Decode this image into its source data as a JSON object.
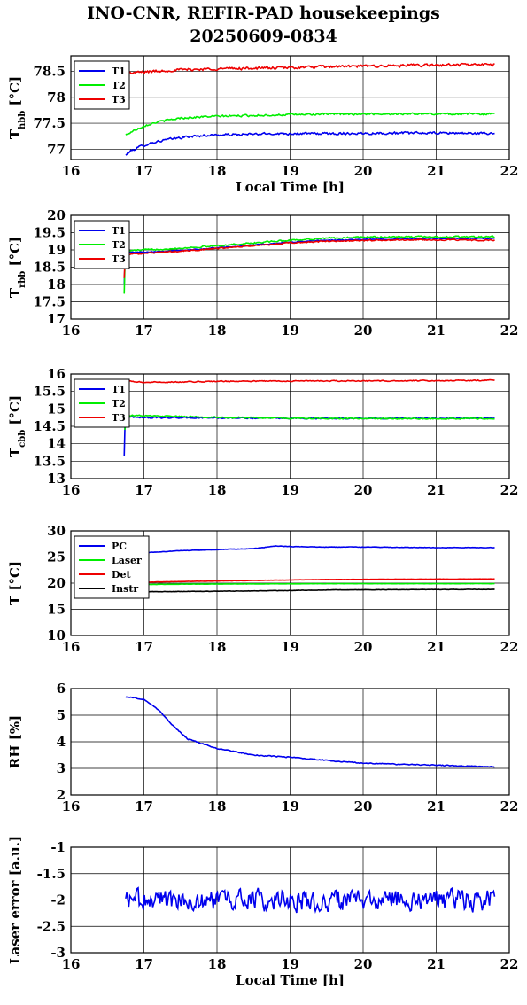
{
  "title": "INO-CNR, REFIR-PAD housekeepings",
  "subtitle": "20250609-0834",
  "chart_data": [
    {
      "type": "line",
      "ylabel": "T",
      "ylabel_sub": "hbb",
      "ylabel_unit": " [°C]",
      "xlabel": "Local Time [h]",
      "xlim": [
        16,
        22
      ],
      "ylim": [
        76.8,
        78.8
      ],
      "xticks": [
        "16",
        "17",
        "18",
        "19",
        "20",
        "21",
        "22"
      ],
      "yticks": [
        {
          "v": 77,
          "label": "77"
        },
        {
          "v": 77.5,
          "label": "77.5"
        },
        {
          "v": 78,
          "label": "78"
        },
        {
          "v": 78.5,
          "label": "78.5"
        }
      ],
      "legend_position": "top-left",
      "grid": true,
      "series": [
        {
          "name": "T1",
          "color": "#0000ee",
          "noise": 0.03,
          "x": [
            16.75,
            16.8,
            16.95,
            17.1,
            17.3,
            17.6,
            17.9,
            18.3,
            18.8,
            19.5,
            20.5,
            21.2,
            21.8
          ],
          "y": [
            76.88,
            76.95,
            77.05,
            77.12,
            77.18,
            77.24,
            77.27,
            77.28,
            77.3,
            77.3,
            77.31,
            77.31,
            77.3
          ]
        },
        {
          "name": "T2",
          "color": "#00ee00",
          "noise": 0.025,
          "x": [
            16.75,
            16.85,
            17.0,
            17.2,
            17.5,
            17.9,
            18.5,
            19.2,
            20.0,
            21.0,
            21.8
          ],
          "y": [
            77.27,
            77.35,
            77.45,
            77.53,
            77.6,
            77.63,
            77.65,
            77.67,
            77.68,
            77.68,
            77.68
          ]
        },
        {
          "name": "T3",
          "color": "#ee0000",
          "noise": 0.035,
          "x": [
            16.75,
            17.0,
            17.5,
            18.0,
            18.5,
            19.0,
            19.5,
            20.0,
            20.5,
            21.0,
            21.5,
            21.8
          ],
          "y": [
            78.46,
            78.49,
            78.53,
            78.55,
            78.56,
            78.57,
            78.59,
            78.6,
            78.61,
            78.62,
            78.63,
            78.63
          ]
        }
      ]
    },
    {
      "type": "line",
      "ylabel": "T",
      "ylabel_sub": "rbb",
      "ylabel_unit": " [°C]",
      "xlabel": "",
      "xlim": [
        16,
        22
      ],
      "ylim": [
        17,
        20
      ],
      "xticks": [
        "16",
        "17",
        "18",
        "19",
        "20",
        "21",
        "22"
      ],
      "yticks": [
        {
          "v": 17,
          "label": "17"
        },
        {
          "v": 17.5,
          "label": "17.5"
        },
        {
          "v": 18,
          "label": "18"
        },
        {
          "v": 18.5,
          "label": "18.5"
        },
        {
          "v": 19,
          "label": "19"
        },
        {
          "v": 19.5,
          "label": "19.5"
        },
        {
          "v": 20,
          "label": "20"
        }
      ],
      "legend_position": "top-left",
      "grid": true,
      "series": [
        {
          "name": "T1",
          "color": "#0000ee",
          "noise": 0.02,
          "x": [
            16.73,
            16.74,
            16.76,
            17.0,
            17.5,
            18.0,
            18.5,
            19.0,
            19.5,
            20.0,
            20.5,
            21.0,
            21.5,
            21.8
          ],
          "y": [
            18.0,
            18.9,
            18.92,
            18.94,
            18.98,
            19.06,
            19.14,
            19.22,
            19.28,
            19.3,
            19.32,
            19.33,
            19.33,
            19.33
          ]
        },
        {
          "name": "T2",
          "color": "#00ee00",
          "noise": 0.03,
          "x": [
            16.73,
            16.74,
            16.76,
            17.0,
            17.5,
            18.0,
            18.5,
            19.0,
            19.5,
            20.0,
            20.5,
            21.0,
            21.5,
            21.8
          ],
          "y": [
            17.75,
            18.95,
            18.97,
            19.0,
            19.05,
            19.12,
            19.2,
            19.28,
            19.34,
            19.37,
            19.38,
            19.38,
            19.38,
            19.38
          ]
        },
        {
          "name": "T3",
          "color": "#ee0000",
          "noise": 0.025,
          "x": [
            16.73,
            16.74,
            16.76,
            17.0,
            17.5,
            18.0,
            18.5,
            19.0,
            19.5,
            20.0,
            20.5,
            21.0,
            21.5,
            21.8
          ],
          "y": [
            18.2,
            18.85,
            18.88,
            18.9,
            18.96,
            19.04,
            19.12,
            19.2,
            19.25,
            19.27,
            19.29,
            19.29,
            19.28,
            19.28
          ]
        }
      ]
    },
    {
      "type": "line",
      "ylabel": "T",
      "ylabel_sub": "cbb",
      "ylabel_unit": " [°C]",
      "xlabel": "",
      "xlim": [
        16,
        22
      ],
      "ylim": [
        13,
        16
      ],
      "xticks": [
        "16",
        "17",
        "18",
        "19",
        "20",
        "21",
        "22"
      ],
      "yticks": [
        {
          "v": 13,
          "label": "13"
        },
        {
          "v": 13.5,
          "label": "13.5"
        },
        {
          "v": 14,
          "label": "14"
        },
        {
          "v": 14.5,
          "label": "14.5"
        },
        {
          "v": 15,
          "label": "15"
        },
        {
          "v": 15.5,
          "label": "15.5"
        },
        {
          "v": 16,
          "label": "16"
        }
      ],
      "legend_position": "top-left",
      "grid": true,
      "series": [
        {
          "name": "T1",
          "color": "#0000ee",
          "noise": 0.025,
          "x": [
            16.73,
            16.74,
            16.76,
            17.0,
            18.0,
            19.0,
            20.0,
            21.0,
            21.8
          ],
          "y": [
            13.65,
            14.85,
            14.78,
            14.75,
            14.74,
            14.73,
            14.73,
            14.73,
            14.74
          ]
        },
        {
          "name": "T2",
          "color": "#00ee00",
          "noise": 0.025,
          "x": [
            16.74,
            16.76,
            17.0,
            18.0,
            19.0,
            20.0,
            21.0,
            21.8
          ],
          "y": [
            14.4,
            14.82,
            14.8,
            14.76,
            14.73,
            14.72,
            14.72,
            14.72
          ]
        },
        {
          "name": "T3",
          "color": "#ee0000",
          "noise": 0.02,
          "x": [
            16.75,
            17.0,
            17.5,
            18.0,
            19.0,
            20.0,
            21.0,
            21.8
          ],
          "y": [
            15.8,
            15.76,
            15.77,
            15.79,
            15.8,
            15.8,
            15.81,
            15.82
          ]
        }
      ]
    },
    {
      "type": "line",
      "ylabel": "T [°C]",
      "ylabel_sub": "",
      "ylabel_unit": "",
      "xlabel": "",
      "xlim": [
        16,
        22
      ],
      "ylim": [
        10,
        30
      ],
      "xticks": [
        "16",
        "17",
        "18",
        "19",
        "20",
        "21",
        "22"
      ],
      "yticks": [
        {
          "v": 10,
          "label": "10"
        },
        {
          "v": 15,
          "label": "15"
        },
        {
          "v": 20,
          "label": "20"
        },
        {
          "v": 25,
          "label": "25"
        },
        {
          "v": 30,
          "label": "30"
        }
      ],
      "legend_position": "top-left",
      "grid": true,
      "series": [
        {
          "name": "PC",
          "color": "#0000ee",
          "noise": 0.06,
          "x": [
            16.75,
            17.0,
            17.5,
            18.0,
            18.5,
            18.8,
            19.0,
            19.5,
            20.0,
            21.0,
            21.8
          ],
          "y": [
            25.4,
            25.8,
            26.2,
            26.4,
            26.6,
            27.1,
            27.0,
            26.9,
            26.9,
            26.8,
            26.8
          ]
        },
        {
          "name": "Laser",
          "color": "#00ee00",
          "noise": 0.03,
          "x": [
            16.75,
            17.5,
            18.5,
            19.5,
            20.5,
            21.8
          ],
          "y": [
            19.7,
            19.8,
            19.85,
            19.9,
            19.9,
            19.9
          ]
        },
        {
          "name": "Det",
          "color": "#ee0000",
          "noise": 0.03,
          "x": [
            16.75,
            17.5,
            18.5,
            19.5,
            20.5,
            21.8
          ],
          "y": [
            20.1,
            20.3,
            20.5,
            20.7,
            20.75,
            20.8
          ]
        },
        {
          "name": "Instr",
          "color": "#000000",
          "noise": 0.05,
          "x": [
            16.75,
            17.5,
            18.5,
            19.0,
            19.5,
            20.5,
            21.8
          ],
          "y": [
            18.3,
            18.4,
            18.5,
            18.6,
            18.7,
            18.75,
            18.8
          ]
        }
      ]
    },
    {
      "type": "line",
      "ylabel": "RH [%]",
      "ylabel_sub": "",
      "ylabel_unit": "",
      "xlabel": "",
      "xlim": [
        16,
        22
      ],
      "ylim": [
        2,
        6
      ],
      "xticks": [
        "16",
        "17",
        "18",
        "19",
        "20",
        "21",
        "22"
      ],
      "yticks": [
        {
          "v": 2,
          "label": "2"
        },
        {
          "v": 3,
          "label": "3"
        },
        {
          "v": 4,
          "label": "4"
        },
        {
          "v": 5,
          "label": "5"
        },
        {
          "v": 6,
          "label": "6"
        }
      ],
      "legend_position": "none",
      "grid": true,
      "series": [
        {
          "name": "",
          "color": "#0000ee",
          "noise": 0.025,
          "x": [
            16.75,
            17.0,
            17.2,
            17.4,
            17.6,
            18.0,
            18.5,
            19.0,
            19.5,
            20.0,
            20.5,
            21.0,
            21.5,
            21.8
          ],
          "y": [
            5.7,
            5.6,
            5.2,
            4.6,
            4.1,
            3.75,
            3.5,
            3.42,
            3.3,
            3.2,
            3.15,
            3.12,
            3.08,
            3.05
          ]
        }
      ]
    },
    {
      "type": "line",
      "ylabel": "Laser error [a.u.]",
      "ylabel_sub": "",
      "ylabel_unit": "",
      "xlabel": "Local Time [h]",
      "xlim": [
        16,
        22
      ],
      "ylim": [
        -3,
        -1
      ],
      "xticks": [
        "16",
        "17",
        "18",
        "19",
        "20",
        "21",
        "22"
      ],
      "yticks": [
        {
          "v": -3,
          "label": "-3"
        },
        {
          "v": -2.5,
          "label": "-2.5"
        },
        {
          "v": -2,
          "label": "-2"
        },
        {
          "v": -1.5,
          "label": "-1.5"
        },
        {
          "v": -1,
          "label": "-1"
        }
      ],
      "legend_position": "none",
      "grid": true,
      "series": [
        {
          "name": "",
          "color": "#0000ee",
          "noise": 0.28,
          "x": [
            16.75,
            21.8
          ],
          "y": [
            -2.0,
            -2.0
          ]
        }
      ]
    }
  ]
}
